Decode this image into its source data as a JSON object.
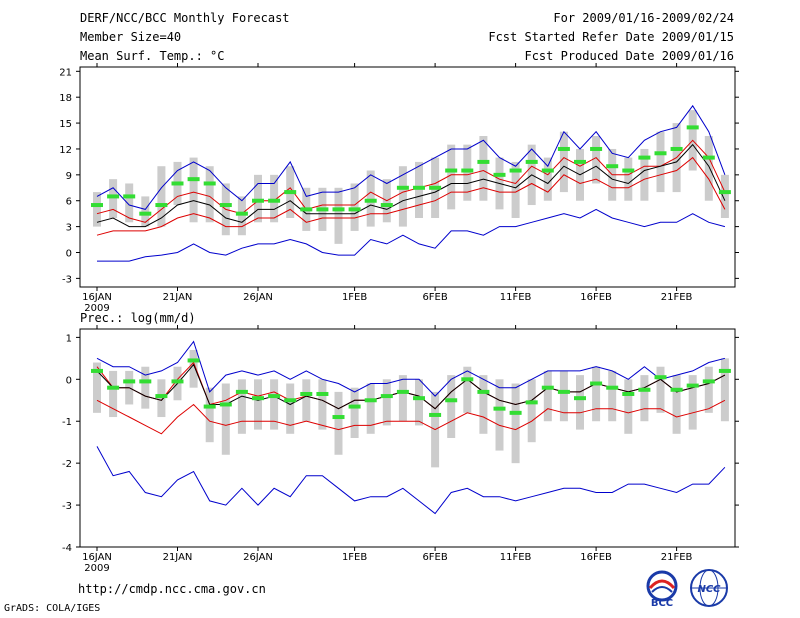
{
  "header": {
    "title": "DERF/NCC/BCC Monthly Forecast",
    "member": "Member Size=40",
    "variable": "Mean Surf. Temp.: °C",
    "period": "For 2009/01/16-2009/02/24",
    "started": "Fcst Started Refer Date 2009/01/15",
    "produced": "Fcst Produced Date 2009/01/16"
  },
  "footer": {
    "url": "http://cmdp.ncc.cma.gov.cn",
    "grads": "GrADS: COLA/IGES",
    "logo_bcc": "BCC",
    "logo_ncc": "NCC"
  },
  "chart_data": [
    {
      "type": "line",
      "title": "Mean Surf. Temp.: °C",
      "ylim": [
        -4,
        21.5
      ],
      "yticks": [
        -3,
        0,
        3,
        6,
        9,
        12,
        15,
        18,
        21
      ],
      "xticks": [
        "16JAN",
        "21JAN",
        "26JAN",
        "1FEB",
        "6FEB",
        "11FEB",
        "16FEB",
        "21FEB"
      ],
      "xtick_days": [
        1,
        6,
        11,
        17,
        22,
        27,
        32,
        37
      ],
      "year_label": "2009",
      "days": [
        1,
        2,
        3,
        4,
        5,
        6,
        7,
        8,
        9,
        10,
        11,
        12,
        13,
        14,
        15,
        16,
        17,
        18,
        19,
        20,
        21,
        22,
        23,
        24,
        25,
        26,
        27,
        28,
        29,
        30,
        31,
        32,
        33,
        34,
        35,
        36,
        37,
        38,
        39,
        40
      ],
      "series": [
        {
          "name": "max",
          "color": "#0000cc",
          "values": [
            6.5,
            7.5,
            5.5,
            5,
            7.5,
            9.5,
            10.5,
            9.5,
            7.5,
            6,
            8,
            8,
            10.5,
            6.5,
            7,
            7,
            7.5,
            9,
            8,
            9,
            10,
            11,
            12,
            12,
            13,
            11,
            10,
            12,
            10,
            14,
            12,
            14,
            11.5,
            11,
            13,
            14,
            14.5,
            17,
            14,
            9
          ]
        },
        {
          "name": "upper",
          "color": "#dd0000",
          "values": [
            4.5,
            5,
            4,
            3.5,
            5,
            6.5,
            7,
            6.5,
            5,
            4.5,
            6,
            6,
            7.5,
            5,
            5.5,
            5.5,
            5.5,
            7,
            6,
            7,
            7.5,
            8,
            9,
            9,
            9.5,
            8.5,
            8,
            10,
            9,
            11,
            10,
            11,
            9,
            9,
            10,
            10,
            11,
            13,
            11,
            7
          ]
        },
        {
          "name": "mean",
          "color": "#000000",
          "values": [
            3.5,
            4,
            3,
            3,
            4,
            5.5,
            6,
            5.5,
            4,
            3.5,
            5,
            5,
            6,
            4.5,
            4.5,
            4.5,
            4.5,
            5.5,
            5,
            6,
            6.5,
            7,
            8,
            8,
            8.5,
            8,
            7.5,
            9,
            8,
            10,
            9,
            10,
            8.5,
            8,
            9.5,
            10,
            10.5,
            12.5,
            10,
            6
          ]
        },
        {
          "name": "lower",
          "color": "#dd0000",
          "values": [
            2,
            2.5,
            2.5,
            2.5,
            3,
            4,
            4.5,
            4,
            3,
            3,
            4,
            4,
            5,
            3.5,
            4,
            4,
            4,
            4.5,
            4.5,
            5,
            5.5,
            6,
            7,
            7,
            7.5,
            7,
            7,
            8,
            7,
            9,
            8,
            8.5,
            7.5,
            7.5,
            8.5,
            9,
            9.5,
            11,
            8.5,
            5
          ]
        },
        {
          "name": "min",
          "color": "#0000cc",
          "values": [
            -1,
            -1,
            -1,
            -0.5,
            -0.3,
            0,
            1,
            0,
            -0.3,
            0.5,
            1,
            1,
            1.5,
            1,
            0,
            -0.3,
            -0.3,
            1.5,
            1,
            2,
            1,
            0.5,
            2.5,
            2.5,
            2,
            3,
            3,
            3.5,
            4,
            4.5,
            4,
            5,
            4,
            3.5,
            3,
            3.5,
            3.5,
            4.5,
            3.5,
            3
          ]
        },
        {
          "name": "median",
          "color": "#33dd33",
          "values": [
            5.5,
            6.5,
            6.5,
            4.5,
            5.5,
            8,
            8.5,
            8,
            5.5,
            4.5,
            6,
            6,
            7,
            5,
            5,
            5,
            5,
            6,
            5.5,
            7.5,
            7.5,
            7.5,
            9.5,
            9.5,
            10.5,
            9,
            9.5,
            10.5,
            9.5,
            12,
            10.5,
            12,
            10,
            9.5,
            11,
            11.5,
            12,
            14.5,
            11,
            7
          ]
        },
        {
          "name": "q_low",
          "color": "#cccccc",
          "values": [
            3,
            4,
            3.5,
            3,
            3,
            5.5,
            3.5,
            3.5,
            2,
            2,
            3.5,
            3.5,
            4,
            2.5,
            2.5,
            1,
            2.5,
            3,
            3.5,
            3,
            4,
            4,
            5,
            6,
            6,
            5,
            4,
            5.5,
            6,
            7,
            6,
            8,
            6,
            6,
            6,
            7,
            7,
            9.5,
            6,
            4
          ]
        },
        {
          "name": "q_high",
          "color": "#cccccc",
          "values": [
            7,
            8.5,
            8,
            6.5,
            10,
            10.5,
            11,
            10,
            8,
            6.5,
            9,
            9,
            10,
            7.5,
            7.5,
            7.5,
            8,
            9.5,
            8.5,
            10,
            10.5,
            11,
            12.5,
            12.5,
            13.5,
            11,
            10.5,
            12.5,
            11,
            14,
            12,
            13.5,
            12,
            11,
            12,
            14,
            15,
            16.5,
            13.5,
            9
          ]
        }
      ]
    },
    {
      "type": "line",
      "title": "Prec.: log(mm/d)",
      "ylim": [
        -4,
        1.2
      ],
      "yticks": [
        -4,
        -3,
        -2,
        -1,
        0,
        1
      ],
      "xticks": [
        "16JAN",
        "21JAN",
        "26JAN",
        "1FEB",
        "6FEB",
        "11FEB",
        "16FEB",
        "21FEB"
      ],
      "xtick_days": [
        1,
        6,
        11,
        17,
        22,
        27,
        32,
        37
      ],
      "year_label": "2009",
      "days": [
        1,
        2,
        3,
        4,
        5,
        6,
        7,
        8,
        9,
        10,
        11,
        12,
        13,
        14,
        15,
        16,
        17,
        18,
        19,
        20,
        21,
        22,
        23,
        24,
        25,
        26,
        27,
        28,
        29,
        30,
        31,
        32,
        33,
        34,
        35,
        36,
        37,
        38,
        39,
        40
      ],
      "series": [
        {
          "name": "max",
          "color": "#0000cc",
          "values": [
            0.5,
            0.3,
            0.3,
            0.1,
            0.2,
            0.4,
            0.9,
            -0.3,
            0.1,
            0.2,
            0.1,
            0.2,
            0,
            0.2,
            0,
            -0.1,
            -0.3,
            -0.1,
            -0.1,
            0,
            0,
            -0.4,
            0,
            0.2,
            0,
            -0.2,
            -0.2,
            0,
            0.2,
            0.2,
            0.2,
            0.3,
            0.2,
            0,
            0.3,
            0,
            0.1,
            0.2,
            0.4,
            0.5
          ]
        },
        {
          "name": "upper",
          "color": "#dd0000",
          "values": [
            0.3,
            -0.2,
            -0.2,
            -0.4,
            -0.5,
            0,
            0.4,
            -0.6,
            -0.5,
            -0.3,
            -0.4,
            -0.3,
            -0.5,
            -0.4,
            -0.5,
            -0.7,
            -0.5,
            -0.5,
            -0.4,
            -0.3,
            -0.4,
            -0.7,
            -0.3,
            0,
            -0.3,
            -0.5,
            -0.6,
            -0.5,
            -0.2,
            -0.3,
            -0.3,
            -0.1,
            -0.2,
            -0.3,
            -0.2,
            0,
            -0.3,
            -0.2,
            -0.1,
            0.1
          ]
        },
        {
          "name": "mean",
          "color": "#000000",
          "values": [
            0.2,
            -0.2,
            -0.2,
            -0.4,
            -0.5,
            -0.1,
            0.35,
            -0.6,
            -0.6,
            -0.4,
            -0.5,
            -0.4,
            -0.6,
            -0.4,
            -0.5,
            -0.7,
            -0.5,
            -0.5,
            -0.4,
            -0.3,
            -0.4,
            -0.7,
            -0.3,
            0,
            -0.3,
            -0.5,
            -0.6,
            -0.5,
            -0.2,
            -0.3,
            -0.3,
            -0.1,
            -0.2,
            -0.3,
            -0.2,
            0,
            -0.3,
            -0.2,
            -0.1,
            0.1
          ]
        },
        {
          "name": "lower",
          "color": "#dd0000",
          "values": [
            -0.5,
            -0.7,
            -0.9,
            -1.1,
            -1.3,
            -0.9,
            -0.6,
            -1,
            -1.1,
            -1,
            -1,
            -1,
            -1.1,
            -1,
            -1.1,
            -1.2,
            -1.1,
            -1.1,
            -1,
            -1,
            -1,
            -1.2,
            -1,
            -0.8,
            -0.9,
            -1.1,
            -1.2,
            -1,
            -0.7,
            -0.8,
            -0.8,
            -0.7,
            -0.7,
            -0.8,
            -0.7,
            -0.7,
            -0.9,
            -0.8,
            -0.7,
            -0.5
          ]
        },
        {
          "name": "min",
          "color": "#0000cc",
          "values": [
            -1.6,
            -2.3,
            -2.2,
            -2.7,
            -2.8,
            -2.4,
            -2.2,
            -2.9,
            -3,
            -2.6,
            -3,
            -2.6,
            -2.8,
            -2.3,
            -2.3,
            -2.6,
            -2.9,
            -2.8,
            -2.8,
            -2.6,
            -2.9,
            -3.2,
            -2.7,
            -2.6,
            -2.8,
            -2.8,
            -2.9,
            -2.8,
            -2.7,
            -2.6,
            -2.6,
            -2.7,
            -2.7,
            -2.5,
            -2.5,
            -2.6,
            -2.7,
            -2.5,
            -2.5,
            -2.1
          ]
        },
        {
          "name": "median",
          "color": "#33dd33",
          "values": [
            0.2,
            -0.2,
            -0.05,
            -0.05,
            -0.4,
            -0.05,
            0.45,
            -0.65,
            -0.6,
            -0.3,
            -0.45,
            -0.4,
            -0.5,
            -0.35,
            -0.35,
            -0.9,
            -0.65,
            -0.5,
            -0.4,
            -0.3,
            -0.45,
            -0.85,
            -0.5,
            0,
            -0.3,
            -0.7,
            -0.8,
            -0.55,
            -0.2,
            -0.3,
            -0.45,
            -0.1,
            -0.2,
            -0.35,
            -0.25,
            0.05,
            -0.25,
            -0.15,
            -0.05,
            0.2
          ]
        },
        {
          "name": "q_low",
          "color": "#cccccc",
          "values": [
            -0.8,
            -0.9,
            -0.6,
            -0.7,
            -0.9,
            -0.5,
            -0.2,
            -1.5,
            -1.8,
            -1.3,
            -1.2,
            -1.2,
            -1.3,
            -1,
            -1.2,
            -1.8,
            -1.4,
            -1.3,
            -1.1,
            -1,
            -1.1,
            -2.1,
            -1.4,
            -0.8,
            -1.3,
            -1.7,
            -2,
            -1.5,
            -1,
            -1,
            -1.2,
            -1,
            -1,
            -1.3,
            -1,
            -0.8,
            -1.3,
            -1.2,
            -0.8,
            -1
          ]
        },
        {
          "name": "q_high",
          "color": "#cccccc",
          "values": [
            0.4,
            0.2,
            0.2,
            0.3,
            0,
            0.3,
            0.7,
            -0.2,
            -0.1,
            0,
            0,
            0,
            -0.1,
            0,
            0,
            -0.3,
            -0.2,
            -0.1,
            0,
            0.1,
            0,
            -0.3,
            0.1,
            0.3,
            0.1,
            0,
            -0.1,
            0,
            0.2,
            0.2,
            0.1,
            0.3,
            0.2,
            0,
            0.1,
            0.3,
            0.1,
            0.1,
            0.3,
            0.5
          ]
        }
      ]
    }
  ]
}
